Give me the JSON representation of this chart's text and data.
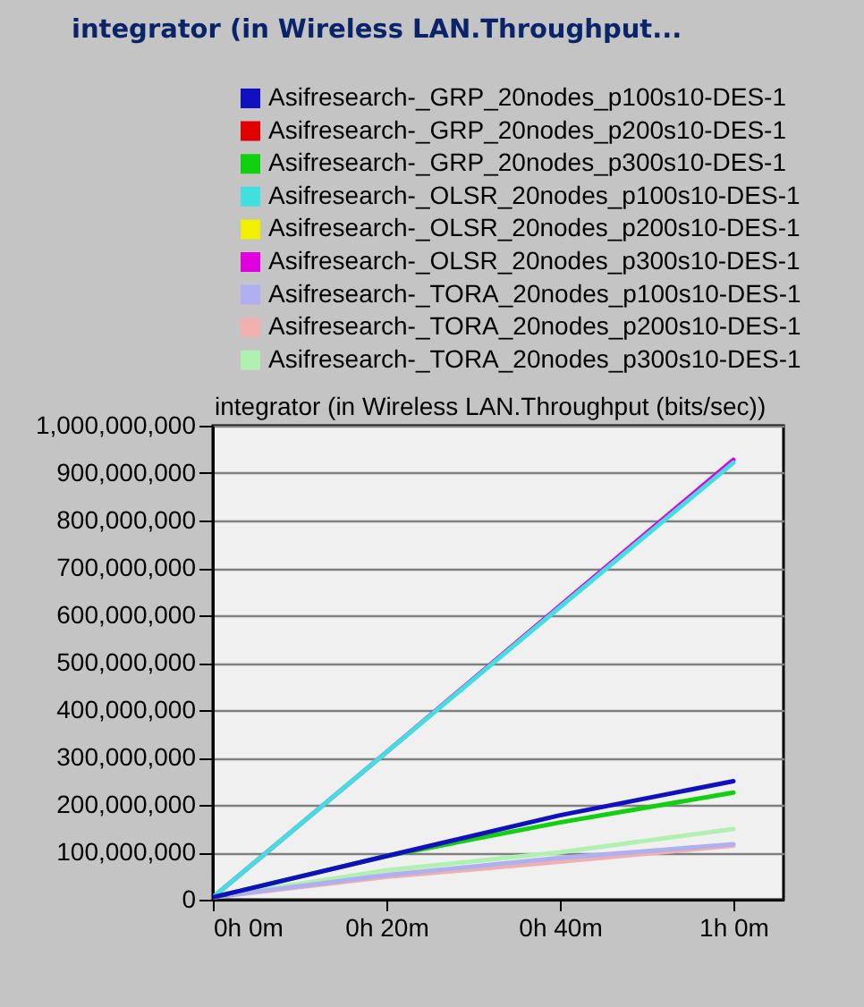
{
  "chart_data": {
    "type": "line",
    "title": "integrator (in Wireless LAN.Throughput...",
    "subtitle": "integrator (in Wireless LAN.Throughput (bits/sec))",
    "categories": [
      "0h 0m",
      "0h 20m",
      "0h 40m",
      "1h 0m"
    ],
    "ylim": [
      0,
      1000000000
    ],
    "yticks": [
      {
        "value": 0,
        "label": "0"
      },
      {
        "value": 100000000,
        "label": "100,000,000"
      },
      {
        "value": 200000000,
        "label": "200,000,000"
      },
      {
        "value": 300000000,
        "label": "300,000,000"
      },
      {
        "value": 400000000,
        "label": "400,000,000"
      },
      {
        "value": 500000000,
        "label": "500,000,000"
      },
      {
        "value": 600000000,
        "label": "600,000,000"
      },
      {
        "value": 700000000,
        "label": "700,000,000"
      },
      {
        "value": 800000000,
        "label": "800,000,000"
      },
      {
        "value": 900000000,
        "label": "900,000,000"
      },
      {
        "value": 1000000000,
        "label": "1,000,000,000"
      }
    ],
    "grid": "y",
    "legend": "top right",
    "series": [
      {
        "name": "Asifresearch-_GRP_20nodes_p100s10-DES-1",
        "color": "#1010c0",
        "values": [
          5000000,
          92000000,
          178000000,
          250000000
        ]
      },
      {
        "name": "Asifresearch-_GRP_20nodes_p200s10-DES-1",
        "color": "#e00000",
        "values": [
          null,
          null,
          null,
          null
        ]
      },
      {
        "name": "Asifresearch-_GRP_20nodes_p300s10-DES-1",
        "color": "#10d010",
        "values": [
          5000000,
          92000000,
          163000000,
          226000000
        ]
      },
      {
        "name": "Asifresearch-_OLSR_20nodes_p100s10-DES-1",
        "color": "#40e0e0",
        "values": [
          5000000,
          311000000,
          617000000,
          922000000
        ]
      },
      {
        "name": "Asifresearch-_OLSR_20nodes_p200s10-DES-1",
        "color": "#f0f000",
        "values": [
          null,
          null,
          null,
          null
        ]
      },
      {
        "name": "Asifresearch-_OLSR_20nodes_p300s10-DES-1",
        "color": "#e000e0",
        "values": [
          5000000,
          311000000,
          620000000,
          928000000
        ]
      },
      {
        "name": "Asifresearch-_TORA_20nodes_p100s10-DES-1",
        "color": "#b0b0f0",
        "values": [
          5000000,
          52000000,
          88000000,
          117000000
        ]
      },
      {
        "name": "Asifresearch-_TORA_20nodes_p200s10-DES-1",
        "color": "#f0b0b0",
        "values": [
          5000000,
          48000000,
          80000000,
          114000000
        ]
      },
      {
        "name": "Asifresearch-_TORA_20nodes_p300s10-DES-1",
        "color": "#b0f0b0",
        "values": [
          5000000,
          62000000,
          100000000,
          149000000
        ]
      }
    ]
  }
}
